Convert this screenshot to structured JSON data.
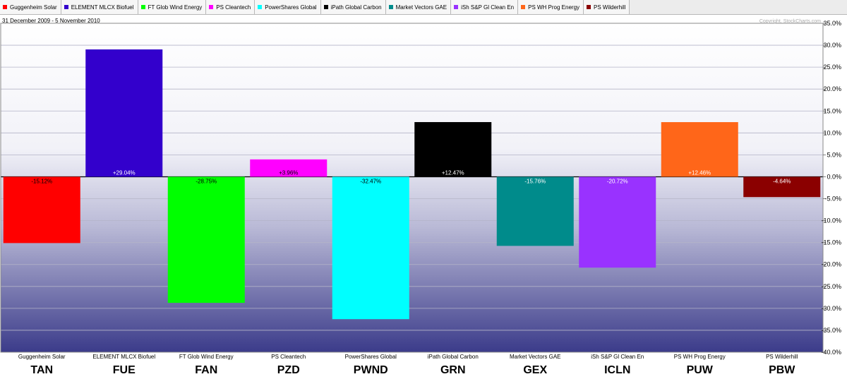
{
  "legend": [
    {
      "label": "Guggenheim Solar",
      "color": "#ff0000"
    },
    {
      "label": "ELEMENT MLCX Biofuel",
      "color": "#3300cc"
    },
    {
      "label": "FT Glob Wind Energy",
      "color": "#00ff00"
    },
    {
      "label": "PS Cleantech",
      "color": "#ff00ff"
    },
    {
      "label": "PowerShares Global",
      "color": "#00ffff"
    },
    {
      "label": "iPath Global Carbon",
      "color": "#000000"
    },
    {
      "label": "Market Vectors GAE",
      "color": "#008b8b"
    },
    {
      "label": "iSh S&P Gl Clean En",
      "color": "#9932ff"
    },
    {
      "label": "PS WH Prog Energy",
      "color": "#ff6619"
    },
    {
      "label": "PS Wilderhill",
      "color": "#8b0000"
    }
  ],
  "date_range": "31 December 2009 - 5 November 2010",
  "copyright": "Copyright, StockCharts.com",
  "chart_data": {
    "type": "bar",
    "categories": [
      "TAN",
      "FUE",
      "FAN",
      "PZD",
      "PWND",
      "GRN",
      "GEX",
      "ICLN",
      "PUW",
      "PBW"
    ],
    "names": [
      "Guggenheim Solar",
      "ELEMENT MLCX Biofuel",
      "FT Glob Wind Energy",
      "PS Cleantech",
      "PowerShares Global",
      "iPath Global Carbon",
      "Market Vectors GAE",
      "iSh S&P Gl Clean En",
      "PS WH Prog Energy",
      "PS Wilderhill"
    ],
    "values": [
      -15.12,
      29.04,
      -28.75,
      3.96,
      -32.47,
      12.47,
      -15.76,
      -20.72,
      12.46,
      -4.64
    ],
    "data_labels": [
      "-15.12%",
      "+29.04%",
      "-28.75%",
      "+3.96%",
      "-32.47%",
      "+12.47%",
      "-15.76%",
      "-20.72%",
      "+12.46%",
      "-4.64%"
    ],
    "colors": [
      "#ff0000",
      "#3300cc",
      "#00ff00",
      "#ff00ff",
      "#00ffff",
      "#000000",
      "#008b8b",
      "#9932ff",
      "#ff6619",
      "#8b0000"
    ],
    "ylim": [
      -40,
      35
    ],
    "yticks": [
      35,
      30,
      25,
      20,
      15,
      10,
      5,
      0,
      -5,
      -10,
      -15,
      -20,
      -25,
      -30,
      -35,
      -40
    ],
    "ytick_labels": [
      "35.0%",
      "30.0%",
      "25.0%",
      "20.0%",
      "15.0%",
      "10.0%",
      "5.0%",
      "0.0%",
      "-5.0%",
      "-10.0%",
      "-15.0%",
      "-20.0%",
      "-25.0%",
      "-30.0%",
      "-35.0%",
      "-40.0%"
    ],
    "grid": true,
    "axis_side": "right"
  }
}
